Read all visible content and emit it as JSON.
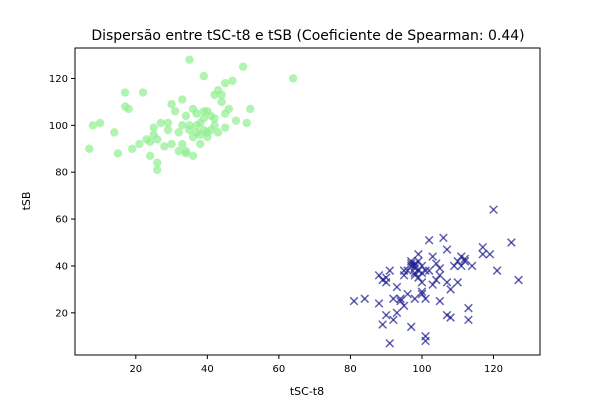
{
  "chart_data": {
    "type": "scatter",
    "title": "Dispersão entre tSC-t8 e tSB (Coeficiente de Spearman: 0.44)",
    "xlabel": "tSC-t8",
    "ylabel": "tSB",
    "xlim": [
      3,
      133
    ],
    "ylim": [
      2,
      133
    ],
    "xticks": [
      20,
      40,
      60,
      80,
      100,
      120
    ],
    "yticks": [
      20,
      40,
      60,
      80,
      100,
      120
    ],
    "grid": false,
    "series": [
      {
        "marker": "circle",
        "color": "#90ee90",
        "points": [
          [
            7,
            90
          ],
          [
            8,
            100
          ],
          [
            10,
            101
          ],
          [
            14,
            97
          ],
          [
            15,
            88
          ],
          [
            17,
            114
          ],
          [
            17,
            108
          ],
          [
            18,
            107
          ],
          [
            19,
            90
          ],
          [
            21,
            92
          ],
          [
            22,
            114
          ],
          [
            23,
            94
          ],
          [
            24,
            87
          ],
          [
            24,
            93
          ],
          [
            25,
            99
          ],
          [
            25,
            96
          ],
          [
            26,
            94
          ],
          [
            26,
            84
          ],
          [
            26,
            81
          ],
          [
            27,
            101
          ],
          [
            28,
            91
          ],
          [
            29,
            98
          ],
          [
            29,
            101
          ],
          [
            30,
            109
          ],
          [
            30,
            92
          ],
          [
            31,
            106
          ],
          [
            32,
            97
          ],
          [
            32,
            89
          ],
          [
            33,
            111
          ],
          [
            33,
            92
          ],
          [
            33,
            100
          ],
          [
            34,
            88
          ],
          [
            34,
            104
          ],
          [
            34,
            89
          ],
          [
            35,
            128
          ],
          [
            35,
            98
          ],
          [
            35,
            100
          ],
          [
            36,
            95
          ],
          [
            36,
            107
          ],
          [
            36,
            87
          ],
          [
            37,
            100
          ],
          [
            37,
            97
          ],
          [
            37,
            105
          ],
          [
            38,
            101
          ],
          [
            38,
            96
          ],
          [
            38,
            92
          ],
          [
            39,
            121
          ],
          [
            39,
            98
          ],
          [
            39,
            103
          ],
          [
            39,
            106
          ],
          [
            40,
            97
          ],
          [
            40,
            95
          ],
          [
            40,
            106
          ],
          [
            41,
            98
          ],
          [
            41,
            104
          ],
          [
            42,
            100
          ],
          [
            42,
            113
          ],
          [
            42,
            103
          ],
          [
            43,
            97
          ],
          [
            43,
            115
          ],
          [
            44,
            110
          ],
          [
            44,
            113
          ],
          [
            45,
            118
          ],
          [
            45,
            105
          ],
          [
            45,
            99
          ],
          [
            46,
            107
          ],
          [
            47,
            119
          ],
          [
            48,
            102
          ],
          [
            50,
            125
          ],
          [
            51,
            101
          ],
          [
            52,
            107
          ],
          [
            64,
            120
          ]
        ]
      },
      {
        "marker": "x",
        "color": "#1c1c8c",
        "points": [
          [
            81,
            25
          ],
          [
            84,
            26
          ],
          [
            88,
            36
          ],
          [
            88,
            24
          ],
          [
            89,
            15
          ],
          [
            89,
            34
          ],
          [
            90,
            19
          ],
          [
            90,
            35
          ],
          [
            90,
            33
          ],
          [
            91,
            7
          ],
          [
            91,
            38
          ],
          [
            92,
            17
          ],
          [
            92,
            26
          ],
          [
            93,
            20
          ],
          [
            93,
            31
          ],
          [
            94,
            25
          ],
          [
            94,
            26
          ],
          [
            95,
            38
          ],
          [
            95,
            23
          ],
          [
            95,
            36
          ],
          [
            96,
            38
          ],
          [
            96,
            28
          ],
          [
            97,
            41
          ],
          [
            97,
            14
          ],
          [
            97,
            40
          ],
          [
            97,
            42
          ],
          [
            98,
            36
          ],
          [
            98,
            37
          ],
          [
            98,
            26
          ],
          [
            98,
            39
          ],
          [
            98,
            41
          ],
          [
            98,
            40
          ],
          [
            99,
            42
          ],
          [
            99,
            45
          ],
          [
            99,
            38
          ],
          [
            99,
            35
          ],
          [
            100,
            28
          ],
          [
            100,
            37
          ],
          [
            100,
            29
          ],
          [
            100,
            40
          ],
          [
            100,
            33
          ],
          [
            101,
            10
          ],
          [
            101,
            8
          ],
          [
            101,
            26
          ],
          [
            101,
            38
          ],
          [
            102,
            38
          ],
          [
            102,
            51
          ],
          [
            103,
            32
          ],
          [
            103,
            44
          ],
          [
            104,
            34
          ],
          [
            104,
            41
          ],
          [
            105,
            39
          ],
          [
            105,
            36
          ],
          [
            105,
            25
          ],
          [
            106,
            52
          ],
          [
            107,
            19
          ],
          [
            107,
            47
          ],
          [
            107,
            33
          ],
          [
            108,
            18
          ],
          [
            108,
            30
          ],
          [
            109,
            40
          ],
          [
            110,
            33
          ],
          [
            110,
            42
          ],
          [
            111,
            44
          ],
          [
            111,
            40
          ],
          [
            112,
            42
          ],
          [
            112,
            43
          ],
          [
            113,
            17
          ],
          [
            113,
            22
          ],
          [
            114,
            40
          ],
          [
            117,
            45
          ],
          [
            117,
            48
          ],
          [
            119,
            45
          ],
          [
            120,
            64
          ],
          [
            121,
            38
          ],
          [
            125,
            50
          ],
          [
            127,
            34
          ]
        ]
      }
    ]
  }
}
